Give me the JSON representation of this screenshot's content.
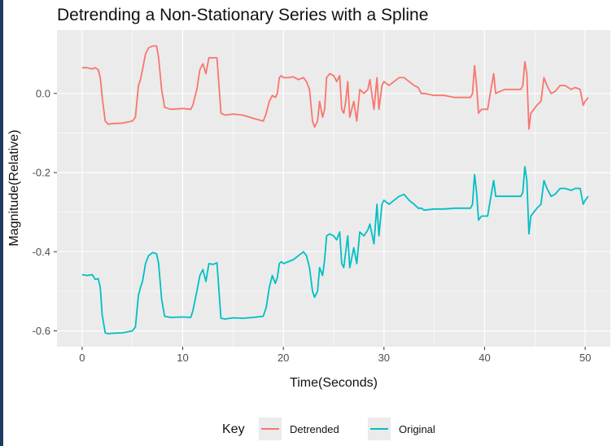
{
  "chart_data": {
    "type": "line",
    "title": "Detrending a Non-Stationary Series with a Spline",
    "xlabel": "Time(Seconds)",
    "ylabel": "Magnitude(Relative)",
    "xlim": [
      -2.5,
      52.5
    ],
    "ylim": [
      -0.64,
      0.16
    ],
    "x_ticks": [
      0,
      10,
      20,
      30,
      40,
      50
    ],
    "x_tick_labels": [
      "0",
      "10",
      "20",
      "30",
      "40",
      "50"
    ],
    "y_ticks": [
      0.0,
      -0.2,
      -0.4,
      -0.6
    ],
    "y_tick_labels": [
      "0.0",
      "-0.2",
      "-0.4",
      "-0.6"
    ],
    "grid": true,
    "legend": {
      "title": "Key",
      "position": "bottom"
    },
    "series": [
      {
        "name": "Detrended",
        "color": "#F8766D",
        "points": [
          [
            0,
            0.065
          ],
          [
            0.5,
            0.065
          ],
          [
            1,
            0.062
          ],
          [
            1.3,
            0.065
          ],
          [
            1.6,
            0.06
          ],
          [
            1.8,
            0.04
          ],
          [
            2,
            -0.01
          ],
          [
            2.3,
            -0.07
          ],
          [
            2.6,
            -0.078
          ],
          [
            3,
            -0.076
          ],
          [
            4,
            -0.075
          ],
          [
            5,
            -0.07
          ],
          [
            5.3,
            -0.06
          ],
          [
            5.6,
            0.02
          ],
          [
            5.8,
            0.035
          ],
          [
            6,
            0.06
          ],
          [
            6.3,
            0.1
          ],
          [
            6.6,
            0.115
          ],
          [
            7,
            0.12
          ],
          [
            7.4,
            0.12
          ],
          [
            7.6,
            0.09
          ],
          [
            7.9,
            0.01
          ],
          [
            8.2,
            -0.035
          ],
          [
            8.8,
            -0.04
          ],
          [
            10,
            -0.038
          ],
          [
            10.8,
            -0.04
          ],
          [
            11,
            -0.03
          ],
          [
            11.4,
            0.01
          ],
          [
            11.7,
            0.06
          ],
          [
            12,
            0.075
          ],
          [
            12.3,
            0.05
          ],
          [
            12.6,
            0.09
          ],
          [
            13,
            0.09
          ],
          [
            13.4,
            0.09
          ],
          [
            13.6,
            0.02
          ],
          [
            13.8,
            -0.05
          ],
          [
            14.2,
            -0.055
          ],
          [
            15,
            -0.052
          ],
          [
            16,
            -0.055
          ],
          [
            17,
            -0.063
          ],
          [
            18,
            -0.07
          ],
          [
            18.3,
            -0.05
          ],
          [
            18.6,
            -0.02
          ],
          [
            18.9,
            -0.005
          ],
          [
            19.2,
            -0.01
          ],
          [
            19.4,
            0.0
          ],
          [
            19.6,
            0.04
          ],
          [
            19.8,
            0.045
          ],
          [
            20,
            0.04
          ],
          [
            20.5,
            0.04
          ],
          [
            21,
            0.042
          ],
          [
            21.5,
            0.035
          ],
          [
            22,
            0.04
          ],
          [
            22.3,
            0.03
          ],
          [
            22.6,
            0.01
          ],
          [
            22.9,
            -0.07
          ],
          [
            23.1,
            -0.085
          ],
          [
            23.4,
            -0.07
          ],
          [
            23.6,
            -0.02
          ],
          [
            23.9,
            -0.06
          ],
          [
            24.1,
            -0.04
          ],
          [
            24.3,
            0.04
          ],
          [
            24.6,
            0.05
          ],
          [
            25,
            0.045
          ],
          [
            25.3,
            0.03
          ],
          [
            25.6,
            0.045
          ],
          [
            25.8,
            -0.04
          ],
          [
            26,
            -0.05
          ],
          [
            26.2,
            -0.02
          ],
          [
            26.4,
            0.03
          ],
          [
            26.6,
            -0.06
          ],
          [
            27,
            -0.02
          ],
          [
            27.3,
            -0.07
          ],
          [
            27.6,
            0.01
          ],
          [
            28,
            0.0
          ],
          [
            28.4,
            0.01
          ],
          [
            28.6,
            0.035
          ],
          [
            29,
            -0.04
          ],
          [
            29.3,
            0.04
          ],
          [
            29.5,
            -0.04
          ],
          [
            29.8,
            0.02
          ],
          [
            30,
            0.03
          ],
          [
            30.5,
            0.02
          ],
          [
            31,
            0.03
          ],
          [
            31.5,
            0.04
          ],
          [
            32,
            0.04
          ],
          [
            32.5,
            0.03
          ],
          [
            33,
            0.02
          ],
          [
            33.4,
            0.015
          ],
          [
            33.7,
            0.0
          ],
          [
            34,
            0.0
          ],
          [
            35,
            -0.005
          ],
          [
            36,
            -0.005
          ],
          [
            37,
            -0.01
          ],
          [
            38,
            -0.01
          ],
          [
            38.6,
            -0.01
          ],
          [
            38.8,
            0.0
          ],
          [
            39,
            0.07
          ],
          [
            39.2,
            0.02
          ],
          [
            39.4,
            -0.05
          ],
          [
            39.7,
            -0.04
          ],
          [
            40,
            -0.04
          ],
          [
            40.3,
            -0.04
          ],
          [
            40.5,
            -0.01
          ],
          [
            40.7,
            0.02
          ],
          [
            40.9,
            0.05
          ],
          [
            41.1,
            0.0
          ],
          [
            41.5,
            0.005
          ],
          [
            42,
            0.01
          ],
          [
            43,
            0.01
          ],
          [
            43.6,
            0.01
          ],
          [
            43.8,
            0.02
          ],
          [
            44,
            0.08
          ],
          [
            44.2,
            0.05
          ],
          [
            44.4,
            -0.09
          ],
          [
            44.6,
            -0.05
          ],
          [
            44.9,
            -0.04
          ],
          [
            45.2,
            -0.03
          ],
          [
            45.6,
            -0.02
          ],
          [
            45.9,
            0.04
          ],
          [
            46.2,
            0.02
          ],
          [
            46.6,
            0.0
          ],
          [
            47,
            0.005
          ],
          [
            47.5,
            0.02
          ],
          [
            48,
            0.02
          ],
          [
            48.6,
            0.01
          ],
          [
            49,
            0.015
          ],
          [
            49.5,
            0.01
          ],
          [
            49.8,
            -0.03
          ],
          [
            50,
            -0.02
          ],
          [
            50.3,
            -0.01
          ]
        ]
      },
      {
        "name": "Original",
        "color": "#00BFC4",
        "points": [
          [
            0,
            -0.458
          ],
          [
            0.5,
            -0.46
          ],
          [
            1,
            -0.458
          ],
          [
            1.3,
            -0.47
          ],
          [
            1.6,
            -0.468
          ],
          [
            1.8,
            -0.49
          ],
          [
            2,
            -0.56
          ],
          [
            2.3,
            -0.605
          ],
          [
            2.6,
            -0.607
          ],
          [
            3,
            -0.606
          ],
          [
            4,
            -0.605
          ],
          [
            5,
            -0.6
          ],
          [
            5.3,
            -0.59
          ],
          [
            5.6,
            -0.51
          ],
          [
            5.8,
            -0.49
          ],
          [
            6,
            -0.475
          ],
          [
            6.3,
            -0.43
          ],
          [
            6.6,
            -0.41
          ],
          [
            7,
            -0.402
          ],
          [
            7.4,
            -0.405
          ],
          [
            7.6,
            -0.43
          ],
          [
            7.9,
            -0.52
          ],
          [
            8.2,
            -0.563
          ],
          [
            8.8,
            -0.566
          ],
          [
            10,
            -0.565
          ],
          [
            10.8,
            -0.566
          ],
          [
            11,
            -0.55
          ],
          [
            11.4,
            -0.5
          ],
          [
            11.7,
            -0.46
          ],
          [
            12,
            -0.445
          ],
          [
            12.3,
            -0.475
          ],
          [
            12.6,
            -0.43
          ],
          [
            13,
            -0.432
          ],
          [
            13.4,
            -0.428
          ],
          [
            13.6,
            -0.5
          ],
          [
            13.8,
            -0.568
          ],
          [
            14.2,
            -0.57
          ],
          [
            15,
            -0.567
          ],
          [
            16,
            -0.568
          ],
          [
            17,
            -0.566
          ],
          [
            18,
            -0.563
          ],
          [
            18.3,
            -0.54
          ],
          [
            18.6,
            -0.49
          ],
          [
            18.9,
            -0.46
          ],
          [
            19.2,
            -0.48
          ],
          [
            19.4,
            -0.465
          ],
          [
            19.6,
            -0.43
          ],
          [
            19.8,
            -0.425
          ],
          [
            20,
            -0.43
          ],
          [
            20.5,
            -0.425
          ],
          [
            21,
            -0.42
          ],
          [
            21.5,
            -0.41
          ],
          [
            22,
            -0.4
          ],
          [
            22.3,
            -0.41
          ],
          [
            22.6,
            -0.44
          ],
          [
            22.9,
            -0.5
          ],
          [
            23.1,
            -0.515
          ],
          [
            23.4,
            -0.5
          ],
          [
            23.6,
            -0.44
          ],
          [
            23.9,
            -0.46
          ],
          [
            24.1,
            -0.42
          ],
          [
            24.3,
            -0.36
          ],
          [
            24.6,
            -0.355
          ],
          [
            25,
            -0.36
          ],
          [
            25.3,
            -0.37
          ],
          [
            25.6,
            -0.35
          ],
          [
            25.8,
            -0.43
          ],
          [
            26,
            -0.44
          ],
          [
            26.2,
            -0.4
          ],
          [
            26.4,
            -0.36
          ],
          [
            26.6,
            -0.44
          ],
          [
            27,
            -0.39
          ],
          [
            27.3,
            -0.43
          ],
          [
            27.6,
            -0.35
          ],
          [
            28,
            -0.36
          ],
          [
            28.4,
            -0.345
          ],
          [
            28.6,
            -0.33
          ],
          [
            29,
            -0.38
          ],
          [
            29.3,
            -0.28
          ],
          [
            29.5,
            -0.36
          ],
          [
            29.8,
            -0.28
          ],
          [
            30,
            -0.27
          ],
          [
            30.5,
            -0.28
          ],
          [
            31,
            -0.27
          ],
          [
            31.5,
            -0.26
          ],
          [
            32,
            -0.255
          ],
          [
            32.5,
            -0.27
          ],
          [
            33,
            -0.28
          ],
          [
            33.4,
            -0.29
          ],
          [
            33.7,
            -0.29
          ],
          [
            34,
            -0.295
          ],
          [
            35,
            -0.292
          ],
          [
            36,
            -0.292
          ],
          [
            37,
            -0.29
          ],
          [
            38,
            -0.29
          ],
          [
            38.6,
            -0.29
          ],
          [
            38.8,
            -0.28
          ],
          [
            39,
            -0.205
          ],
          [
            39.2,
            -0.25
          ],
          [
            39.4,
            -0.32
          ],
          [
            39.7,
            -0.31
          ],
          [
            40,
            -0.31
          ],
          [
            40.3,
            -0.31
          ],
          [
            40.5,
            -0.28
          ],
          [
            40.7,
            -0.25
          ],
          [
            40.9,
            -0.22
          ],
          [
            41.1,
            -0.26
          ],
          [
            41.5,
            -0.26
          ],
          [
            42,
            -0.26
          ],
          [
            43,
            -0.26
          ],
          [
            43.6,
            -0.26
          ],
          [
            43.8,
            -0.25
          ],
          [
            44,
            -0.185
          ],
          [
            44.2,
            -0.22
          ],
          [
            44.4,
            -0.355
          ],
          [
            44.6,
            -0.31
          ],
          [
            44.9,
            -0.3
          ],
          [
            45.2,
            -0.29
          ],
          [
            45.6,
            -0.28
          ],
          [
            45.9,
            -0.22
          ],
          [
            46.2,
            -0.24
          ],
          [
            46.6,
            -0.26
          ],
          [
            47,
            -0.255
          ],
          [
            47.5,
            -0.24
          ],
          [
            48,
            -0.24
          ],
          [
            48.6,
            -0.245
          ],
          [
            49,
            -0.24
          ],
          [
            49.5,
            -0.24
          ],
          [
            49.8,
            -0.28
          ],
          [
            50,
            -0.27
          ],
          [
            50.3,
            -0.26
          ]
        ]
      }
    ]
  }
}
